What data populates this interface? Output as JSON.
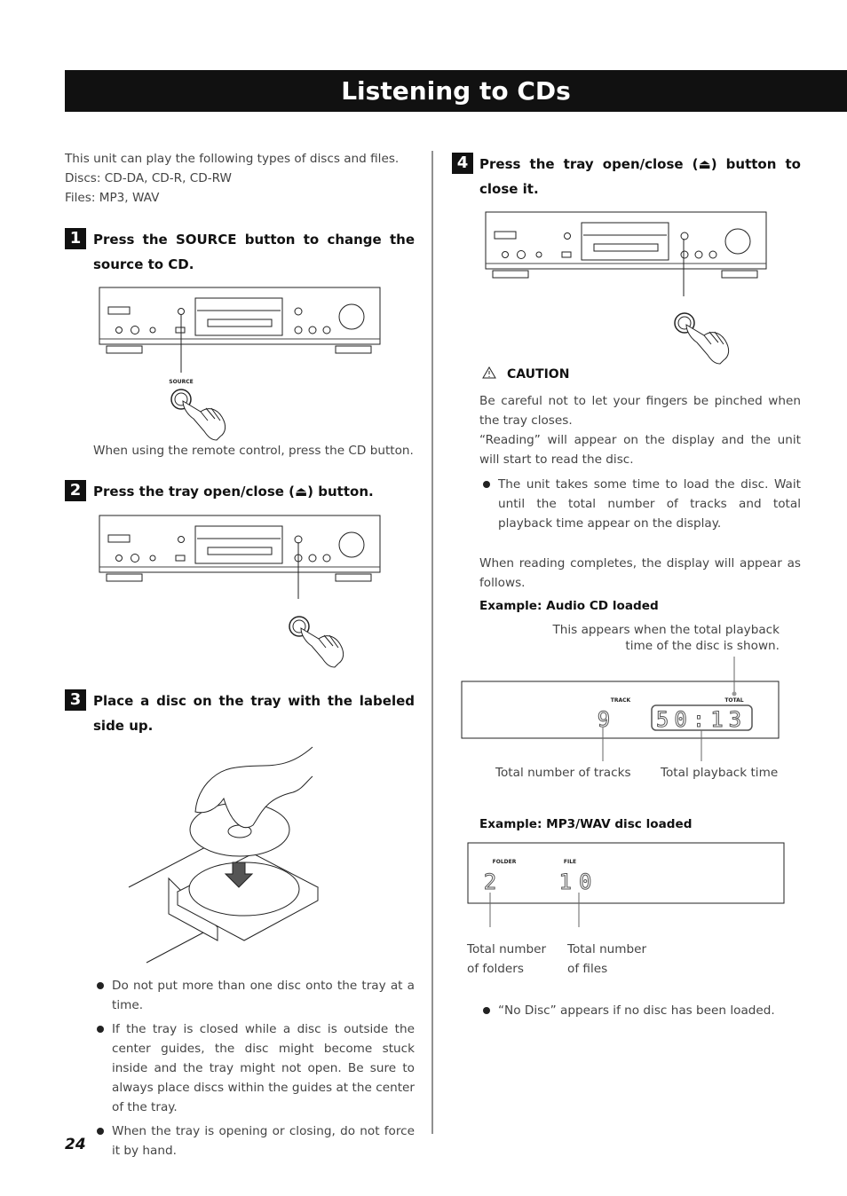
{
  "header": {
    "title": "Listening to CDs"
  },
  "intro": [
    "This unit can play the following types of discs and files.",
    "Discs: CD-DA, CD-R, CD-RW",
    "Files: MP3, WAV"
  ],
  "steps": [
    {
      "number": "1",
      "heading": "Press the SOURCE button to change the source to CD.",
      "button_label": "SOURCE",
      "note": "When using the remote control, press the CD button."
    },
    {
      "number": "2",
      "heading": "Press the tray open/close (⏏) button."
    },
    {
      "number": "3",
      "heading": "Place a disc on the tray with the labeled side up.",
      "bullets": [
        "Do not put more than one disc onto the tray at a time.",
        "If the tray is closed while a disc is outside the center guides, the disc might become stuck inside and the tray might not open. Be sure to always place discs within the guides at the center of the tray.",
        "When the tray is opening or closing, do not force it by hand."
      ]
    },
    {
      "number": "4",
      "heading": "Press the tray open/close (⏏) button to close it.",
      "caution": {
        "title": "CAUTION",
        "paragraphs": [
          "Be careful not to let your fingers be pinched when the tray closes.",
          "“Reading” will appear on the display and the unit will start to read the disc."
        ],
        "bullets": [
          "The unit takes some time to load the disc. Wait until the total number of tracks and total playback time appear on the display."
        ]
      },
      "follows": "When reading completes, the display will appear as follows.",
      "examples": [
        {
          "title": "Example: Audio CD loaded",
          "callout": "This appears when the total playback time of the disc is shown.",
          "indicators": [
            "TRACK",
            "TOTAL"
          ],
          "readouts": [
            "9",
            "50:13"
          ],
          "captions": [
            "Total number of tracks",
            "Total playback time"
          ]
        },
        {
          "title": "Example: MP3/WAV disc loaded",
          "indicators": [
            "FOLDER",
            "FILE"
          ],
          "readouts": [
            "2",
            "10"
          ],
          "captions": [
            "Total number of folders",
            "Total number of files"
          ],
          "bullets": [
            "“No Disc” appears if no disc has been loaded."
          ]
        }
      ]
    }
  ],
  "page_number": "24"
}
